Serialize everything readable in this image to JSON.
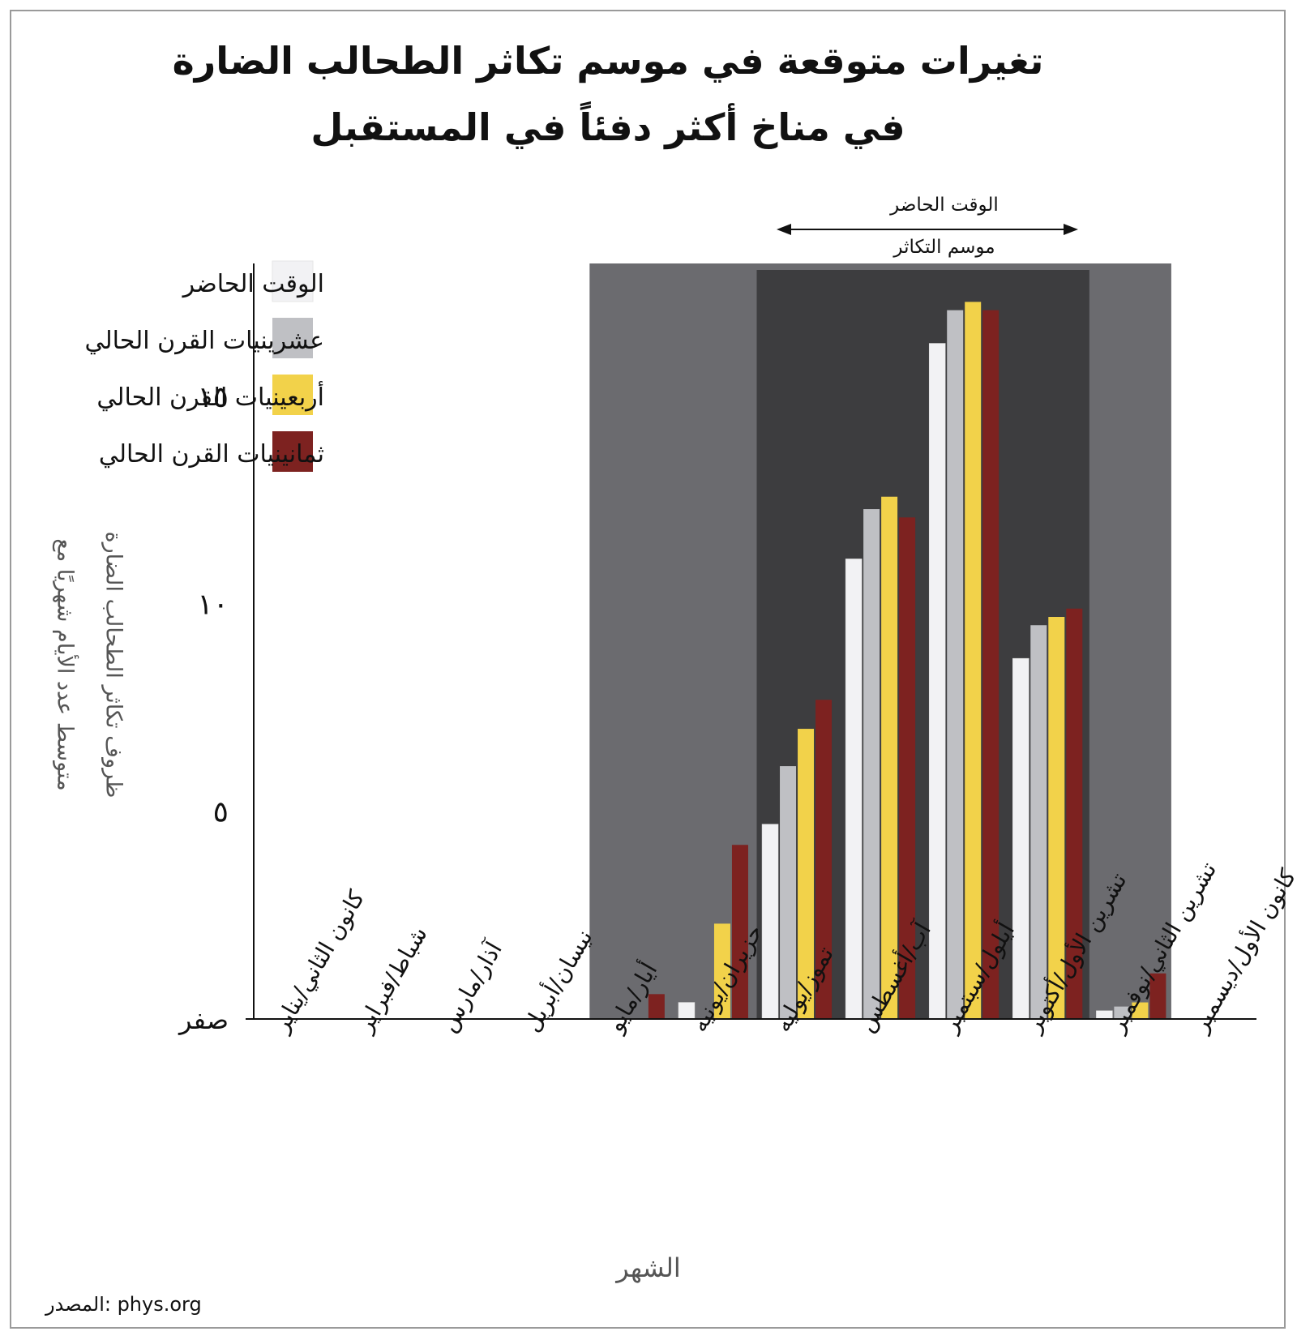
{
  "title": {
    "line1": "تغيرات متوقعة في موسم تكاثر الطحالب الضارة",
    "line2": "في مناخ أكثر دفئاً في المستقبل"
  },
  "season_marker": {
    "top_label": "الوقت الحاضر",
    "bottom_label": "موسم التكاثر"
  },
  "source": "المصدر: phys.org",
  "colors": {
    "present": "#f2f2f4",
    "2020s": "#bfc0c4",
    "2040s": "#f2d24a",
    "2080s": "#7d2220",
    "outer_band": "#6b6b6f",
    "inner_band": "#3d3d3f"
  },
  "chart_data": {
    "type": "bar",
    "title": "تغيرات متوقعة في موسم تكاثر الطحالب الضارة في مناخ أكثر دفئاً في المستقبل",
    "xlabel": "الشهر",
    "ylabel": "متوسط عدد الأيام شهريًا مع ظروف تكاثر الطحالب الضارة",
    "ylim": [
      0,
      18
    ],
    "yticks": [
      {
        "value": 0,
        "label": "صفر"
      },
      {
        "value": 5,
        "label": "٥"
      },
      {
        "value": 10,
        "label": "١٠"
      },
      {
        "value": 15,
        "label": "١٥"
      }
    ],
    "categories": [
      "كانون الثاني/يناير",
      "شباط/فبراير",
      "آذار/مارس",
      "نيسان/أبريل",
      "أيار/مايو",
      "حزيران/يونيه",
      "تموز/يوليه",
      "آب/أغسطس",
      "أيلول/سبتمبر",
      "تشرين الأول/أكتوبر",
      "تشرين الثاني/نوفمبر",
      "كانون الأول/ديسمبر"
    ],
    "series": [
      {
        "name": "الوقت الحاضر",
        "color": "#f2f2f4",
        "values": [
          0,
          0,
          0,
          0,
          0,
          0.4,
          4.7,
          11.1,
          16.3,
          8.7,
          0.2,
          0
        ]
      },
      {
        "name": "عشرينيات القرن الحالي",
        "color": "#bfc0c4",
        "values": [
          0,
          0,
          0,
          0,
          0,
          0,
          6.1,
          12.3,
          17.1,
          9.5,
          0.3,
          0
        ]
      },
      {
        "name": "أربعينيات القرن الحالي",
        "color": "#f2d24a",
        "values": [
          0,
          0,
          0,
          0,
          0,
          2.3,
          7.0,
          12.6,
          17.3,
          9.7,
          0.4,
          0
        ]
      },
      {
        "name": "ثمانينيات القرن الحالي",
        "color": "#7d2220",
        "values": [
          0,
          0,
          0,
          0,
          0.6,
          4.2,
          7.7,
          12.1,
          17.1,
          9.9,
          1.1,
          0
        ]
      }
    ],
    "highlight": {
      "outer_band_months": [
        "أيار/مايو",
        "تشرين الثاني/نوفمبر"
      ],
      "inner_band_months": [
        "تموز/يوليه",
        "تشرين الأول/أكتوبر"
      ]
    },
    "legend": {
      "position": "top-left"
    },
    "grid": false
  }
}
